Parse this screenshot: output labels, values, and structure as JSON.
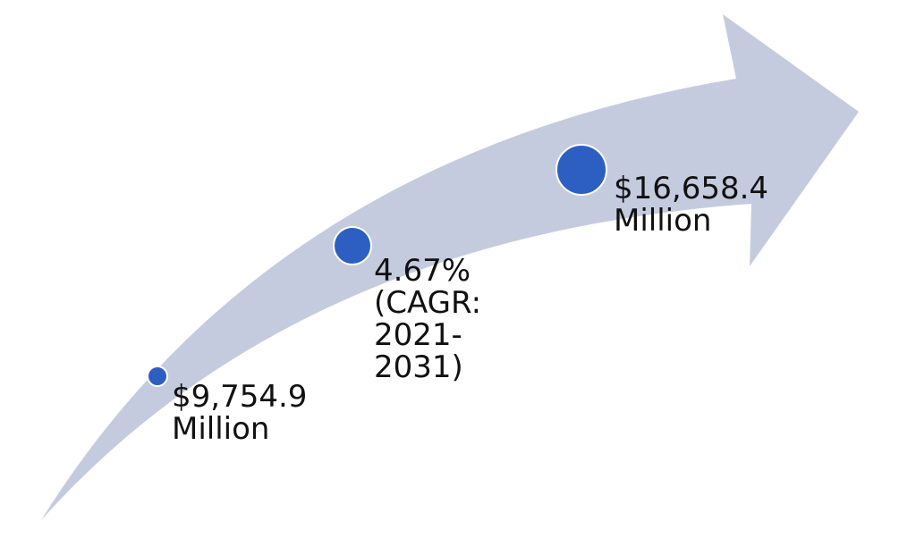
{
  "colors": {
    "arrow_fill": "#c5cbdf",
    "marker_fill": "#2d5fc2",
    "marker_stroke": "#ffffff",
    "text": "#111111"
  },
  "milestones": [
    {
      "kind": "start-value",
      "marker_size": "small",
      "lines": [
        "$9,754.9",
        "Million"
      ]
    },
    {
      "kind": "growth-rate",
      "marker_size": "medium",
      "lines": [
        "4.67%",
        "(CAGR:",
        "2021-",
        "2031)"
      ]
    },
    {
      "kind": "end-value",
      "marker_size": "large",
      "lines": [
        "$16,658.4",
        "Million"
      ]
    }
  ]
}
